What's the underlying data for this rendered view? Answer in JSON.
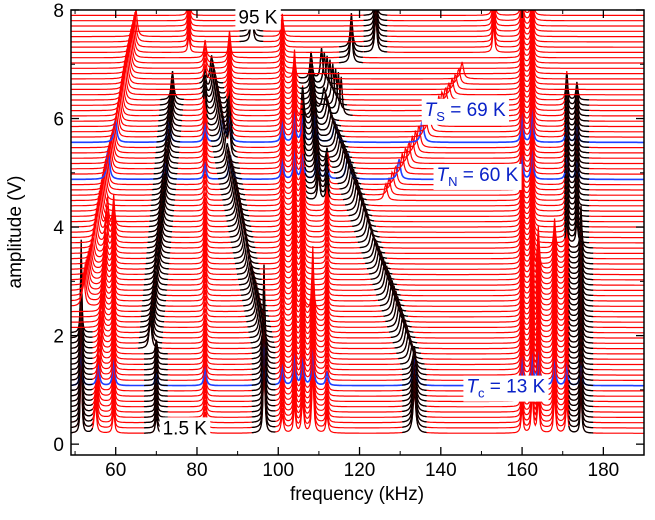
{
  "chart_data": {
    "type": "line",
    "title": "",
    "xlabel": "frequency  (kHz)",
    "ylabel": "amplitude  (V)",
    "xlim": [
      49,
      190
    ],
    "ylim": [
      -0.2,
      8.0
    ],
    "x_ticks": [
      60,
      80,
      100,
      120,
      140,
      160,
      180
    ],
    "y_ticks": [
      0,
      2,
      4,
      6,
      8
    ],
    "grid": false,
    "legend": "none",
    "colors": {
      "default": "#ff0000",
      "tracked": "#000000",
      "transition": "#1f3fff",
      "annotation_text": "#0a22c8"
    },
    "series": [
      {
        "color": "#ff0000",
        "offset_from": 0.2,
        "offset_to": 7.9,
        "trace_count": 80,
        "peaks_kHz": [
          51,
          53,
          55,
          57,
          59,
          70,
          88,
          96.5,
          104,
          106,
          108.5,
          112,
          133.5,
          160,
          162.5,
          164,
          168,
          171,
          174.5
        ]
      },
      {
        "color": "#000000",
        "role": "tracked resonances",
        "peaks_kHz": [
          51.5,
          70,
          93.5,
          96.5,
          110,
          124,
          133.5,
          174.5
        ]
      },
      {
        "color": "#1f3fff",
        "role": "transition traces",
        "offsets": [
          1.05,
          4.85,
          5.55
        ]
      }
    ],
    "annotations": [
      {
        "text": "95 K",
        "x_kHz": 95,
        "y_V": 7.75
      },
      {
        "text": "1.5 K",
        "x_kHz": 77,
        "y_V": 0.18
      },
      {
        "text_parts": [
          "T",
          "S",
          " = 69 K"
        ],
        "x_kHz": 146,
        "y_V": 6.05
      },
      {
        "text_parts": [
          "T",
          "N",
          " = 60 K"
        ],
        "x_kHz": 149,
        "y_V": 4.85
      },
      {
        "text_parts": [
          "T",
          "c",
          " = 13 K"
        ],
        "x_kHz": 156,
        "y_V": 0.95
      }
    ]
  }
}
